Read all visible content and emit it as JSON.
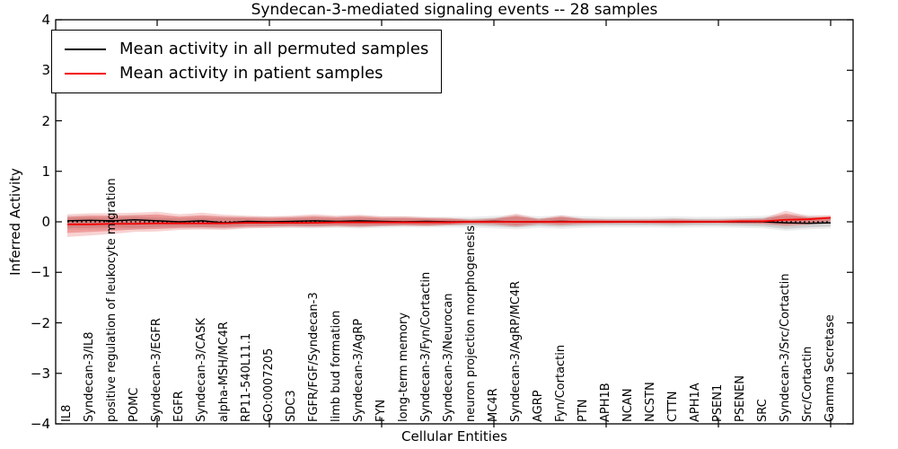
{
  "figure": {
    "title": "Syndecan-3-mediated signaling events -- 28 samples",
    "xlabel": "Cellular Entities",
    "ylabel": "Inferred Activity"
  },
  "legend": {
    "entries": [
      {
        "label": "Mean activity in all permuted samples",
        "color": "#000000"
      },
      {
        "label": "Mean activity in patient samples",
        "color": "#f40000"
      }
    ]
  },
  "chart_data": {
    "type": "line",
    "title": "Syndecan-3-mediated signaling events -- 28 samples",
    "xlabel": "Cellular Entities",
    "ylabel": "Inferred Activity",
    "ylim": [
      -4,
      4
    ],
    "yticks": [
      -4,
      -3,
      -2,
      -1,
      0,
      1,
      2,
      3,
      4
    ],
    "ytick_labels": [
      "−4",
      "−3",
      "−2",
      "−1",
      "0",
      "1",
      "2",
      "3",
      "4"
    ],
    "xtick_positions": [
      5,
      10,
      15,
      20,
      25,
      30,
      35
    ],
    "grid": false,
    "legend_position": "upper-left",
    "categories": [
      "IL8",
      "Syndecan-3/IL8",
      "positive regulation of leukocyte migration",
      "POMC",
      "Syndecan-3/EGFR",
      "EGFR",
      "Syndecan-3/CASK",
      "alpha-MSH/MC4R",
      "RP11-540L11.1",
      "GO:0007205",
      "SDC3",
      "FGFR/FGF/Syndecan-3",
      "limb bud formation",
      "Syndecan-3/AgRP",
      "FYN",
      "long-term memory",
      "Syndecan-3/Fyn/Cortactin",
      "Syndecan-3/Neurocan",
      "neuron projection morphogenesis",
      "MC4R",
      "Syndecan-3/AgRP/MC4R",
      "AGRP",
      "Fyn/Cortactin",
      "PTN",
      "APH1B",
      "NCAN",
      "NCSTN",
      "CTTN",
      "APH1A",
      "PSEN1",
      "PSENEN",
      "SRC",
      "Syndecan-3/Src/Cortactin",
      "Src/Cortactin",
      "Gamma Secretase"
    ],
    "series": [
      {
        "name": "Mean activity in all permuted samples",
        "color": "#000000",
        "width": 1.4,
        "style": "solid",
        "values": [
          0.02,
          0.03,
          0.02,
          0.04,
          0.02,
          0.0,
          0.02,
          -0.02,
          0.01,
          0.0,
          0.01,
          0.02,
          0.01,
          0.02,
          0.01,
          0.0,
          0.01,
          0.0,
          0.0,
          0.01,
          0.0,
          0.0,
          0.01,
          0.0,
          0.0,
          0.0,
          0.0,
          0.0,
          0.0,
          0.0,
          0.0,
          0.0,
          -0.02,
          -0.03,
          -0.02
        ]
      },
      {
        "name": "Mean activity in patient samples",
        "color": "#f40000",
        "width": 1.8,
        "style": "solid",
        "values": [
          -0.05,
          -0.05,
          -0.04,
          -0.04,
          -0.03,
          -0.03,
          -0.03,
          -0.03,
          -0.02,
          -0.02,
          -0.02,
          -0.02,
          -0.01,
          -0.01,
          -0.01,
          -0.01,
          -0.01,
          -0.01,
          0.0,
          0.0,
          0.0,
          0.0,
          0.0,
          0.0,
          0.0,
          0.0,
          0.0,
          0.0,
          0.0,
          0.0,
          0.01,
          0.01,
          0.04,
          0.05,
          0.08
        ]
      }
    ],
    "bands": [
      {
        "name": "permuted-range-outer",
        "color": "#000000",
        "opacity": 0.07,
        "upper": [
          0.12,
          0.13,
          0.12,
          0.14,
          0.12,
          0.11,
          0.12,
          0.11,
          0.11,
          0.1,
          0.11,
          0.12,
          0.11,
          0.12,
          0.11,
          0.11,
          0.1,
          0.1,
          0.1,
          0.12,
          0.14,
          0.11,
          0.13,
          0.11,
          0.1,
          0.1,
          0.1,
          0.11,
          0.1,
          0.1,
          0.11,
          0.12,
          0.16,
          0.14,
          0.12
        ],
        "lower": [
          -0.16,
          -0.16,
          -0.15,
          -0.16,
          -0.14,
          -0.13,
          -0.14,
          -0.14,
          -0.12,
          -0.12,
          -0.12,
          -0.13,
          -0.12,
          -0.13,
          -0.12,
          -0.11,
          -0.11,
          -0.11,
          -0.11,
          -0.13,
          -0.15,
          -0.12,
          -0.14,
          -0.12,
          -0.11,
          -0.11,
          -0.11,
          -0.12,
          -0.11,
          -0.11,
          -0.12,
          -0.13,
          -0.18,
          -0.15,
          -0.13
        ]
      },
      {
        "name": "permuted-range-inner",
        "color": "#000000",
        "opacity": 0.12,
        "upper": [
          0.08,
          0.09,
          0.08,
          0.1,
          0.08,
          0.07,
          0.08,
          0.07,
          0.07,
          0.06,
          0.07,
          0.08,
          0.07,
          0.08,
          0.07,
          0.07,
          0.06,
          0.06,
          0.06,
          0.08,
          0.1,
          0.07,
          0.09,
          0.07,
          0.06,
          0.06,
          0.06,
          0.07,
          0.06,
          0.06,
          0.07,
          0.08,
          0.12,
          0.1,
          0.08
        ],
        "lower": [
          -0.12,
          -0.12,
          -0.11,
          -0.12,
          -0.1,
          -0.09,
          -0.1,
          -0.1,
          -0.08,
          -0.08,
          -0.08,
          -0.09,
          -0.08,
          -0.09,
          -0.08,
          -0.07,
          -0.07,
          -0.07,
          -0.07,
          -0.09,
          -0.11,
          -0.08,
          -0.1,
          -0.08,
          -0.07,
          -0.07,
          -0.07,
          -0.08,
          -0.07,
          -0.07,
          -0.08,
          -0.09,
          -0.14,
          -0.11,
          -0.09
        ]
      },
      {
        "name": "patient-range-outer",
        "color": "#e03030",
        "opacity": 0.22,
        "upper": [
          0.15,
          0.17,
          0.17,
          0.18,
          0.2,
          0.15,
          0.18,
          0.14,
          0.12,
          0.11,
          0.12,
          0.15,
          0.12,
          0.14,
          0.11,
          0.11,
          0.09,
          0.08,
          0.05,
          0.07,
          0.16,
          0.06,
          0.13,
          0.06,
          0.05,
          0.05,
          0.05,
          0.06,
          0.05,
          0.05,
          0.06,
          0.07,
          0.22,
          0.11,
          0.13
        ],
        "lower": [
          -0.3,
          -0.27,
          -0.24,
          -0.2,
          -0.19,
          -0.16,
          -0.15,
          -0.16,
          -0.13,
          -0.12,
          -0.11,
          -0.11,
          -0.1,
          -0.11,
          -0.09,
          -0.08,
          -0.09,
          -0.07,
          -0.05,
          -0.06,
          -0.1,
          -0.05,
          -0.07,
          -0.05,
          -0.04,
          -0.04,
          -0.04,
          -0.05,
          -0.04,
          -0.03,
          -0.04,
          -0.05,
          -0.09,
          -0.06,
          0.0
        ]
      },
      {
        "name": "patient-range-inner",
        "color": "#e03030",
        "opacity": 0.32,
        "upper": [
          0.1,
          0.12,
          0.12,
          0.13,
          0.15,
          0.1,
          0.13,
          0.1,
          0.09,
          0.08,
          0.09,
          0.11,
          0.09,
          0.11,
          0.08,
          0.08,
          0.07,
          0.06,
          0.03,
          0.05,
          0.12,
          0.04,
          0.1,
          0.04,
          0.03,
          0.03,
          0.03,
          0.04,
          0.03,
          0.03,
          0.04,
          0.05,
          0.16,
          0.08,
          0.1
        ],
        "lower": [
          -0.22,
          -0.2,
          -0.18,
          -0.15,
          -0.14,
          -0.12,
          -0.11,
          -0.12,
          -0.1,
          -0.09,
          -0.08,
          -0.08,
          -0.07,
          -0.08,
          -0.07,
          -0.06,
          -0.07,
          -0.05,
          -0.03,
          -0.04,
          -0.07,
          -0.03,
          -0.05,
          -0.03,
          -0.03,
          -0.02,
          -0.03,
          -0.03,
          -0.02,
          -0.02,
          -0.03,
          -0.03,
          -0.06,
          -0.04,
          0.02
        ]
      }
    ],
    "zero_line": {
      "value": 0,
      "style": "dotted",
      "color": "#000000"
    }
  }
}
